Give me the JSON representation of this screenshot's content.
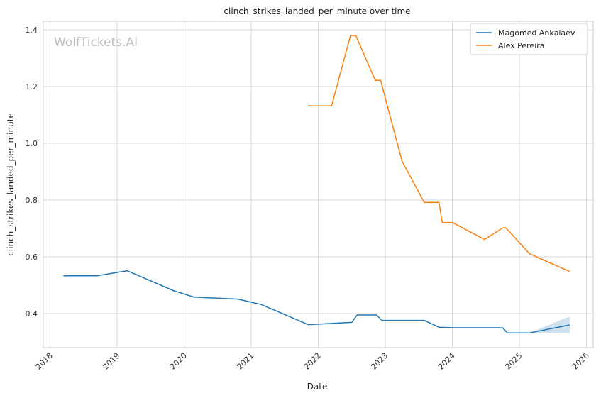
{
  "chart_data": {
    "type": "line",
    "title": "clinch_strikes_landed_per_minute over time",
    "xlabel": "Date",
    "ylabel": "clinch_strikes_landed_per_minute",
    "watermark": "WolfTickets.AI",
    "xlim": [
      2017.9,
      2026.1
    ],
    "ylim": [
      0.28,
      1.43
    ],
    "x_ticks": [
      2018,
      2019,
      2020,
      2021,
      2022,
      2023,
      2024,
      2025,
      2026
    ],
    "y_ticks": [
      0.4,
      0.6,
      0.8,
      1.0,
      1.2,
      1.4
    ],
    "grid": true,
    "legend_position": "top-right",
    "series": [
      {
        "name": "Magomed Ankalaev",
        "color": "#1f77b4",
        "points": [
          [
            2018.2,
            0.533
          ],
          [
            2018.7,
            0.533
          ],
          [
            2019.15,
            0.551
          ],
          [
            2019.85,
            0.48
          ],
          [
            2020.15,
            0.458
          ],
          [
            2020.8,
            0.451
          ],
          [
            2021.15,
            0.432
          ],
          [
            2021.85,
            0.361
          ],
          [
            2022.5,
            0.369
          ],
          [
            2022.58,
            0.395
          ],
          [
            2022.87,
            0.395
          ],
          [
            2022.95,
            0.376
          ],
          [
            2023.58,
            0.376
          ],
          [
            2023.8,
            0.352
          ],
          [
            2024.0,
            0.35
          ],
          [
            2024.75,
            0.35
          ],
          [
            2024.82,
            0.332
          ],
          [
            2025.15,
            0.332
          ],
          [
            2025.75,
            0.36
          ]
        ],
        "band": {
          "x": [
            2025.15,
            2025.75
          ],
          "lower": [
            0.332,
            0.332
          ],
          "upper": [
            0.332,
            0.39
          ]
        }
      },
      {
        "name": "Alex Pereira",
        "color": "#ff7f0e",
        "points": [
          [
            2021.85,
            1.132
          ],
          [
            2022.2,
            1.132
          ],
          [
            2022.48,
            1.38
          ],
          [
            2022.56,
            1.38
          ],
          [
            2022.85,
            1.222
          ],
          [
            2022.93,
            1.222
          ],
          [
            2023.25,
            0.937
          ],
          [
            2023.58,
            0.792
          ],
          [
            2023.8,
            0.792
          ],
          [
            2023.85,
            0.721
          ],
          [
            2024.0,
            0.721
          ],
          [
            2024.48,
            0.661
          ],
          [
            2024.75,
            0.702
          ],
          [
            2024.8,
            0.702
          ],
          [
            2025.15,
            0.611
          ],
          [
            2025.75,
            0.548
          ]
        ]
      }
    ]
  }
}
